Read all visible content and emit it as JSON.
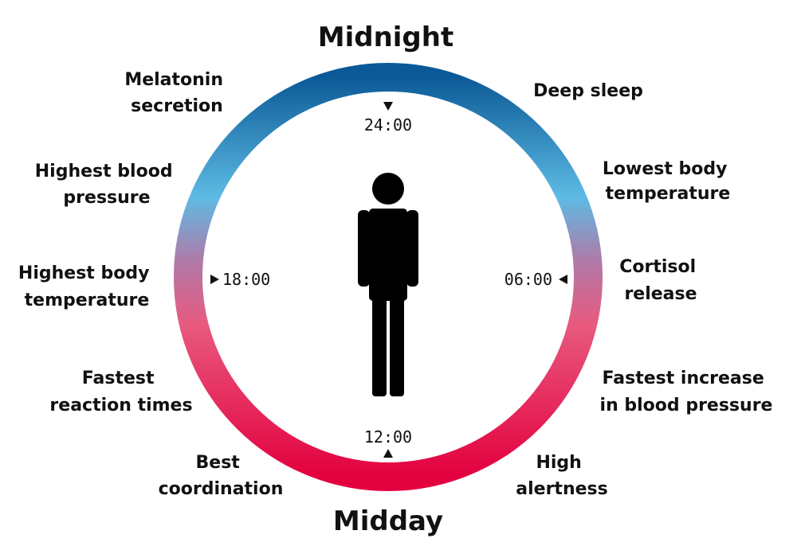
{
  "titles": {
    "top": "Midnight",
    "bottom": "Midday"
  },
  "times": {
    "t24": "24:00",
    "t06": "06:00",
    "t12": "12:00",
    "t18": "18:00"
  },
  "labels": {
    "melatonin": [
      "Melatonin",
      "secretion"
    ],
    "deep_sleep": [
      "Deep sleep"
    ],
    "lowest_temp": [
      "Lowest body",
      "temperature"
    ],
    "cortisol": [
      "Cortisol",
      "release"
    ],
    "fastest_bp": [
      "Fastest increase",
      "in blood pressure"
    ],
    "high_alert": [
      "High",
      "alertness"
    ],
    "best_coord": [
      "Best",
      "coordination"
    ],
    "fastest_react": [
      "Fastest",
      "reaction times"
    ],
    "highest_temp": [
      "Highest body",
      "temperature"
    ],
    "highest_bp": [
      "Highest blood",
      "pressure"
    ]
  },
  "colors": {
    "night_dark": "#0b5a97",
    "night_light": "#5dbbe4",
    "day_pink": "#e8597e",
    "day_red": "#e3003e",
    "transition": "#b07aa8",
    "figure": "#000000"
  },
  "icons": {
    "figure": "person-icon",
    "marker": "triangle-marker-icon"
  }
}
